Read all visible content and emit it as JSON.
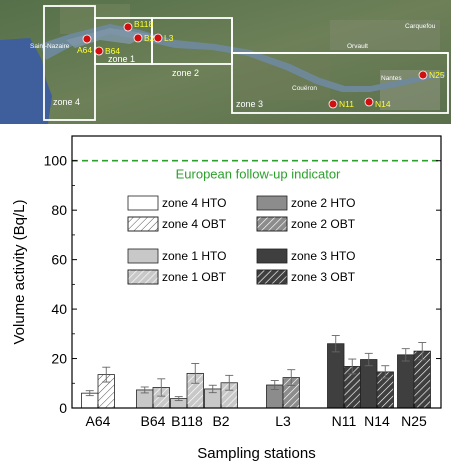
{
  "map": {
    "zones": [
      {
        "id": "zone4",
        "label": "zone 4"
      },
      {
        "id": "zone1",
        "label": "zone 1"
      },
      {
        "id": "zone2",
        "label": "zone 2"
      },
      {
        "id": "zone3",
        "label": "zone 3"
      }
    ],
    "stations": [
      {
        "id": "A64",
        "label": "A64"
      },
      {
        "id": "B118",
        "label": "B118"
      },
      {
        "id": "B64",
        "label": "B64"
      },
      {
        "id": "B2",
        "label": "B2"
      },
      {
        "id": "L3",
        "label": "L3"
      },
      {
        "id": "N11",
        "label": "N11"
      },
      {
        "id": "N14",
        "label": "N14"
      },
      {
        "id": "N25",
        "label": "N25"
      }
    ],
    "towns": [
      "Saint-Nazaire",
      "Orvault",
      "Carquefou",
      "Nantes",
      "Couëron"
    ]
  },
  "chart_data": {
    "type": "bar",
    "xlabel": "Sampling stations",
    "ylabel": "Volume activity (Bq/L)",
    "ylim": [
      0,
      110
    ],
    "yticks": [
      0,
      20,
      40,
      60,
      80,
      100
    ],
    "categories": [
      "A64",
      "B64",
      "B118",
      "B2",
      "L3",
      "N11",
      "N14",
      "N25"
    ],
    "reference_line": {
      "value": 100,
      "label": "European follow-up indicator",
      "color": "#2ca02c"
    },
    "series": [
      {
        "name": "HTO",
        "values": [
          6.0,
          7.3,
          3.8,
          7.7,
          9.3,
          26.0,
          19.6,
          21.5
        ],
        "errors": [
          1.0,
          1.2,
          0.8,
          1.5,
          1.8,
          3.3,
          2.5,
          2.5
        ]
      },
      {
        "name": "OBT",
        "values": [
          13.5,
          8.3,
          14.0,
          10.2,
          12.3,
          16.8,
          14.6,
          23.0
        ],
        "errors": [
          3.0,
          3.5,
          4.0,
          3.0,
          3.2,
          3.0,
          2.5,
          3.5
        ]
      }
    ],
    "station_zones": [
      "zone 4",
      "zone 1",
      "zone 1",
      "zone 1",
      "zone 2",
      "zone 3",
      "zone 3",
      "zone 3"
    ],
    "zone_colors": {
      "zone 4": "#ffffff",
      "zone 1": "#c8c8c8",
      "zone 2": "#8c8c8c",
      "zone 3": "#3f3f3f"
    },
    "legend": [
      {
        "label": "zone 4 HTO",
        "zone": "zone 4",
        "kind": "HTO"
      },
      {
        "label": "zone 4 OBT",
        "zone": "zone 4",
        "kind": "OBT"
      },
      {
        "label": "zone 2 HTO",
        "zone": "zone 2",
        "kind": "HTO"
      },
      {
        "label": "zone 2 OBT",
        "zone": "zone 2",
        "kind": "OBT"
      },
      {
        "label": "zone 1 HTO",
        "zone": "zone 1",
        "kind": "HTO"
      },
      {
        "label": "zone 1 OBT",
        "zone": "zone 1",
        "kind": "OBT"
      },
      {
        "label": "zone 3 HTO",
        "zone": "zone 3",
        "kind": "HTO"
      },
      {
        "label": "zone 3 OBT",
        "zone": "zone 3",
        "kind": "OBT"
      }
    ],
    "legend_placement": "center-left",
    "grid": false
  }
}
